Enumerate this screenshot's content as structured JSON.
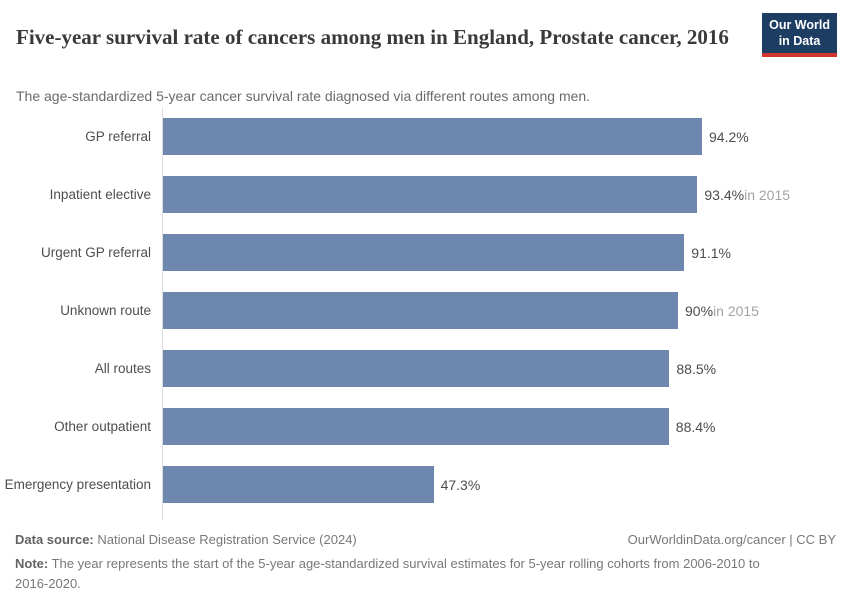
{
  "header": {
    "title": "Five-year survival rate of cancers among men in England, Prostate cancer, 2016",
    "subtitle": "The age-standardized 5-year cancer survival rate diagnosed via different routes among men.",
    "logo": {
      "line1": "Our World",
      "line2": "in Data",
      "bg_color": "#1d3d63",
      "accent_color": "#d0342c"
    }
  },
  "chart_data": {
    "type": "bar",
    "orientation": "horizontal",
    "title": "Five-year survival rate of cancers among men in England, Prostate cancer, 2016",
    "categories": [
      "GP referral",
      "Inpatient elective",
      "Urgent GP referral",
      "Unknown route",
      "All routes",
      "Other outpatient",
      "Emergency presentation"
    ],
    "values": [
      94.2,
      93.4,
      91.1,
      90,
      88.5,
      88.4,
      47.3
    ],
    "value_labels": [
      "94.2%",
      "93.4%",
      "91.1%",
      "90%",
      "88.5%",
      "88.4%",
      "47.3%"
    ],
    "value_suffixes": [
      "",
      "in 2015",
      "",
      "in 2015",
      "",
      "",
      ""
    ],
    "xlim": [
      0,
      94.2
    ],
    "bar_color": "#6d87ae",
    "grid": false,
    "legend": false
  },
  "footer": {
    "data_source_label": "Data source:",
    "data_source_text": " National Disease Registration Service (2024)",
    "link_text": "OurWorldinData.org/cancer | CC BY",
    "note_label": "Note:",
    "note_text": " The year represents the start of the 5-year age-standardized survival estimates for 5-year rolling cohorts from 2006-2010 to 2016-2020."
  }
}
